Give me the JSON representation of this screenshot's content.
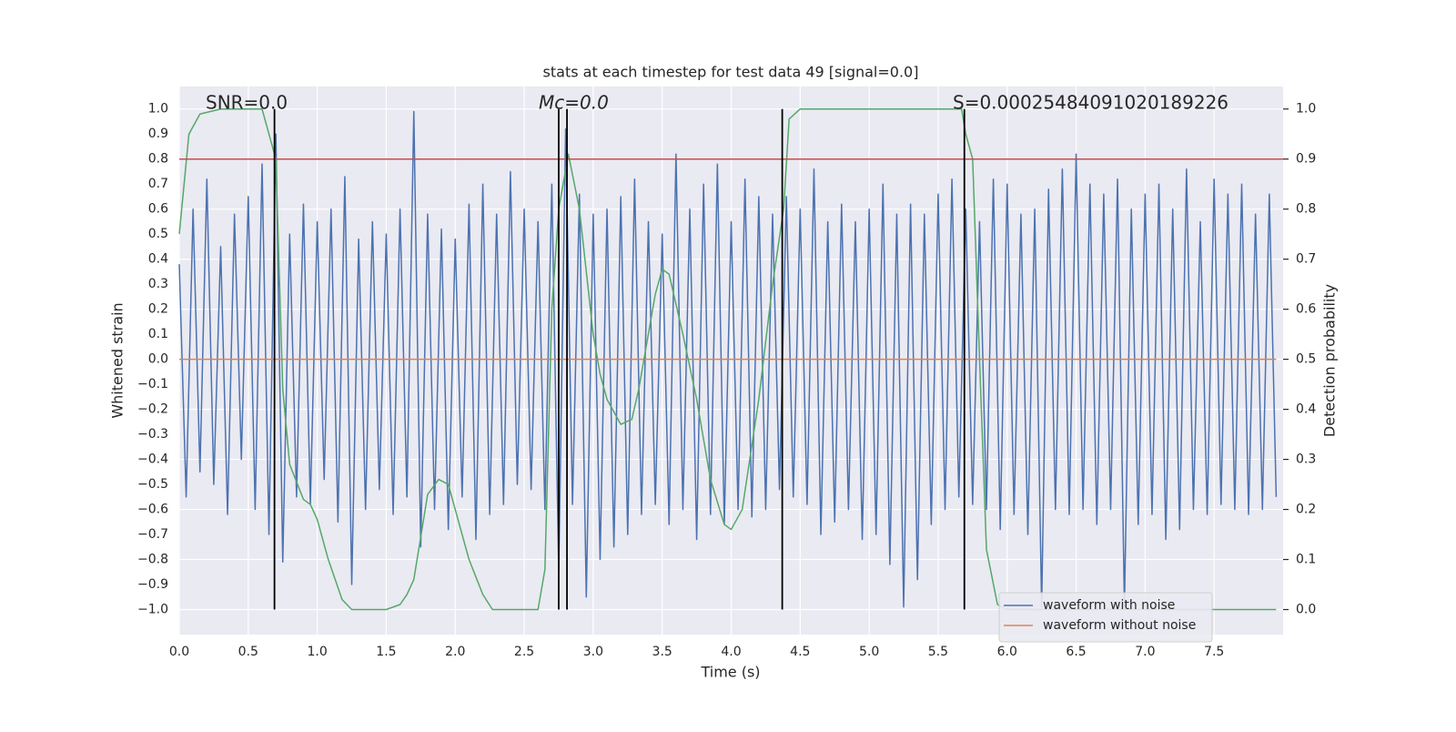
{
  "chart_data": {
    "type": "line",
    "title": "stats at each timestep for test data 49 [signal=0.0]",
    "xlabel": "Time (s)",
    "ylabel": "Whitened strain",
    "y2label": "Detection probability",
    "annotations": [
      "SNR=0.0",
      "Mc=0.0",
      "S=0.00025484091020189226"
    ],
    "xlim": [
      0,
      8
    ],
    "ylim": [
      -1.1,
      1.09
    ],
    "y2lim": [
      -0.05,
      1.045
    ],
    "xticks": [
      {
        "value": 0,
        "label": "0.0"
      },
      0.5,
      {
        "value": 1,
        "label": "1.0"
      },
      1.5,
      {
        "value": 2,
        "label": "2.0"
      },
      2.5,
      {
        "value": 3,
        "label": "3.0"
      },
      3.5,
      {
        "value": 4,
        "label": "4.0"
      },
      4.5,
      {
        "value": 5,
        "label": "5.0"
      },
      5.5,
      {
        "value": 6,
        "label": "6.0"
      },
      6.5,
      {
        "value": 7,
        "label": "7.0"
      },
      7.5
    ],
    "yticks": [
      {
        "value": -1,
        "label": "−1.0"
      },
      {
        "value": -0.9,
        "label": "−0.9"
      },
      {
        "value": -0.8,
        "label": "−0.8"
      },
      {
        "value": -0.7,
        "label": "−0.7"
      },
      {
        "value": -0.6,
        "label": "−0.6"
      },
      {
        "value": -0.5,
        "label": "−0.5"
      },
      {
        "value": -0.4,
        "label": "−0.4"
      },
      {
        "value": -0.3,
        "label": "−0.3"
      },
      {
        "value": -0.2,
        "label": "−0.2"
      },
      {
        "value": -0.1,
        "label": "−0.1"
      },
      {
        "value": 0,
        "label": "0.0"
      },
      0.1,
      0.2,
      0.3,
      0.4,
      0.5,
      0.6,
      0.7,
      0.8,
      0.9,
      {
        "value": 1,
        "label": "1.0"
      }
    ],
    "y2ticks": [
      {
        "value": 0,
        "label": "0.0"
      },
      0.1,
      0.2,
      0.3,
      0.4,
      0.5,
      0.6,
      0.7,
      0.8,
      0.9,
      {
        "value": 1,
        "label": "1.0"
      }
    ],
    "grid": true,
    "legend": "lower right",
    "series": [
      {
        "name": "waveform with noise",
        "color": "#4c72b0",
        "x": [
          0,
          0.05,
          0.1,
          0.15,
          0.2,
          0.25,
          0.3,
          0.35,
          0.4,
          0.45,
          0.5,
          0.55,
          0.6,
          0.65,
          0.7,
          0.75,
          0.8,
          0.85,
          0.9,
          0.95,
          1,
          1.05,
          1.1,
          1.15,
          1.2,
          1.25,
          1.3,
          1.35,
          1.4,
          1.45,
          1.5,
          1.55,
          1.6,
          1.65,
          1.7,
          1.75,
          1.8,
          1.85,
          1.9,
          1.95,
          2,
          2.05,
          2.1,
          2.15,
          2.2,
          2.25,
          2.3,
          2.35,
          2.4,
          2.45,
          2.5,
          2.55,
          2.6,
          2.65,
          2.7,
          2.75,
          2.8,
          2.85,
          2.9,
          2.95,
          3,
          3.05,
          3.1,
          3.15,
          3.2,
          3.25,
          3.3,
          3.35,
          3.4,
          3.45,
          3.5,
          3.55,
          3.6,
          3.65,
          3.7,
          3.75,
          3.8,
          3.85,
          3.9,
          3.95,
          4,
          4.05,
          4.1,
          4.15,
          4.2,
          4.25,
          4.3,
          4.35,
          4.4,
          4.45,
          4.5,
          4.55,
          4.6,
          4.65,
          4.7,
          4.75,
          4.8,
          4.85,
          4.9,
          4.95,
          5,
          5.05,
          5.1,
          5.15,
          5.2,
          5.25,
          5.3,
          5.35,
          5.4,
          5.45,
          5.5,
          5.55,
          5.6,
          5.65,
          5.7,
          5.75,
          5.8,
          5.85,
          5.9,
          5.95,
          6,
          6.05,
          6.1,
          6.15,
          6.2,
          6.25,
          6.3,
          6.35,
          6.4,
          6.45,
          6.5,
          6.55,
          6.6,
          6.65,
          6.7,
          6.75,
          6.8,
          6.85,
          6.9,
          6.95,
          7,
          7.05,
          7.1,
          7.15,
          7.2,
          7.25,
          7.3,
          7.35,
          7.4,
          7.45,
          7.5,
          7.55,
          7.6,
          7.65,
          7.7,
          7.75,
          7.8,
          7.85,
          7.9,
          7.95
        ],
        "values": [
          0.38,
          -0.55,
          0.6,
          -0.45,
          0.72,
          -0.5,
          0.45,
          -0.62,
          0.58,
          -0.4,
          0.65,
          -0.6,
          0.78,
          -0.7,
          0.9,
          -0.81,
          0.5,
          -0.55,
          0.62,
          -0.58,
          0.55,
          -0.48,
          0.6,
          -0.65,
          0.73,
          -0.9,
          0.48,
          -0.6,
          0.55,
          -0.52,
          0.5,
          -0.62,
          0.6,
          -0.55,
          0.99,
          -0.75,
          0.58,
          -0.6,
          0.52,
          -0.68,
          0.48,
          -0.55,
          0.62,
          -0.72,
          0.7,
          -0.62,
          0.58,
          -0.58,
          0.75,
          -0.5,
          0.6,
          -0.52,
          0.55,
          -0.6,
          0.7,
          -0.85,
          0.92,
          -0.58,
          0.66,
          -0.95,
          0.58,
          -0.8,
          0.6,
          -0.75,
          0.65,
          -0.7,
          0.72,
          -0.62,
          0.55,
          -0.58,
          0.5,
          -0.66,
          0.82,
          -0.6,
          0.6,
          -0.72,
          0.7,
          -0.62,
          0.78,
          -0.66,
          0.55,
          -0.6,
          0.72,
          -0.63,
          0.65,
          -0.6,
          0.58,
          -0.52,
          0.65,
          -0.55,
          0.6,
          -0.58,
          0.76,
          -0.7,
          0.55,
          -0.65,
          0.62,
          -0.6,
          0.55,
          -0.72,
          0.6,
          -0.7,
          0.7,
          -0.82,
          0.58,
          -0.99,
          0.62,
          -0.88,
          0.58,
          -0.66,
          0.66,
          -0.6,
          0.72,
          -0.55,
          0.6,
          -0.58,
          0.55,
          -0.6,
          0.72,
          -0.68,
          0.7,
          -0.62,
          0.58,
          -0.7,
          0.6,
          -0.99,
          0.68,
          -0.6,
          0.76,
          -0.62,
          0.82,
          -0.6,
          0.7,
          -0.66,
          0.66,
          -0.6,
          0.72,
          -0.99,
          0.6,
          -0.66,
          0.66,
          -0.62,
          0.7,
          -0.72,
          0.6,
          -0.68,
          0.76,
          -0.6,
          0.55,
          -0.62,
          0.72,
          -0.58,
          0.66,
          -0.6,
          0.7,
          -0.62,
          0.58,
          -0.6,
          0.66,
          -0.55
        ]
      },
      {
        "name": "waveform without noise",
        "color": "#dd8452",
        "x": [
          0,
          7.95
        ],
        "values": [
          0,
          0
        ]
      },
      {
        "color": "#55a868",
        "axis": "y2",
        "x": [
          0,
          0.07,
          0.15,
          0.3,
          0.6,
          0.7,
          0.75,
          0.8,
          0.9,
          0.95,
          1,
          1.08,
          1.18,
          1.25,
          1.5,
          1.6,
          1.65,
          1.7,
          1.8,
          1.88,
          1.95,
          2,
          2.1,
          2.2,
          2.27,
          2.6,
          2.65,
          2.7,
          2.75,
          2.82,
          2.9,
          3,
          3.05,
          3.1,
          3.2,
          3.28,
          3.33,
          3.45,
          3.5,
          3.55,
          3.65,
          3.75,
          3.85,
          3.95,
          4,
          4.08,
          4.2,
          4.3,
          4.38,
          4.42,
          4.5,
          5.67,
          5.7,
          5.75,
          5.8,
          5.85,
          5.93,
          6,
          7.95
        ],
        "values": [
          0.75,
          0.95,
          0.99,
          1,
          1,
          0.9,
          0.44,
          0.29,
          0.22,
          0.21,
          0.18,
          0.1,
          0.02,
          0,
          0,
          0.01,
          0.03,
          0.06,
          0.23,
          0.26,
          0.25,
          0.2,
          0.1,
          0.03,
          0,
          0,
          0.08,
          0.6,
          0.8,
          0.91,
          0.8,
          0.55,
          0.47,
          0.42,
          0.37,
          0.38,
          0.44,
          0.63,
          0.68,
          0.67,
          0.55,
          0.42,
          0.26,
          0.17,
          0.16,
          0.2,
          0.42,
          0.65,
          0.8,
          0.98,
          1,
          1,
          0.95,
          0.9,
          0.5,
          0.12,
          0.01,
          0,
          0
        ]
      }
    ],
    "hlines": [
      {
        "value": 0.9,
        "axis": "y2",
        "color": "#c44e52"
      }
    ],
    "vlines": {
      "values": [
        0.69,
        2.75,
        2.81,
        4.37,
        5.69
      ],
      "color": "#000000"
    }
  }
}
